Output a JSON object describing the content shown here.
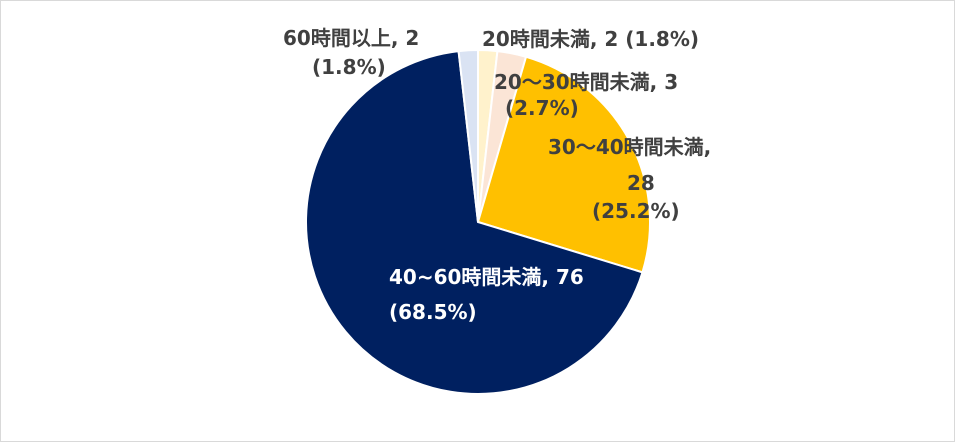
{
  "chart_data": {
    "type": "pie",
    "title": "",
    "slices": [
      {
        "category": "20時間未満",
        "value": 2,
        "percent": "1.8%",
        "color": "#FFF2CC",
        "label_line1": "20時間未満, 2 (1.8%)",
        "label_line2": ""
      },
      {
        "category": "20～30時間未満",
        "value": 3,
        "percent": "2.7%",
        "color": "#FBE5D6",
        "label_line1": "20～30時間未満, 3",
        "label_line2": "(2.7%)"
      },
      {
        "category": "30～40時間未満",
        "value": 28,
        "percent": "25.2%",
        "color": "#FFC000",
        "label_line1": "30～40時間未満,",
        "label_line2": "28",
        "label_line3": "(25.2%)"
      },
      {
        "category": "40~60時間未満",
        "value": 76,
        "percent": "68.5%",
        "color": "#002060",
        "label_line1": "40~60時間未満, 76",
        "label_line2": "(68.5%)"
      },
      {
        "category": "60時間以上",
        "value": 2,
        "percent": "1.8%",
        "color": "#DAE3F3",
        "label_line1": "60時間以上, 2",
        "label_line2": "(1.8%)"
      }
    ],
    "label_colors": {
      "dark": "#404040",
      "light": "#ffffff"
    }
  }
}
